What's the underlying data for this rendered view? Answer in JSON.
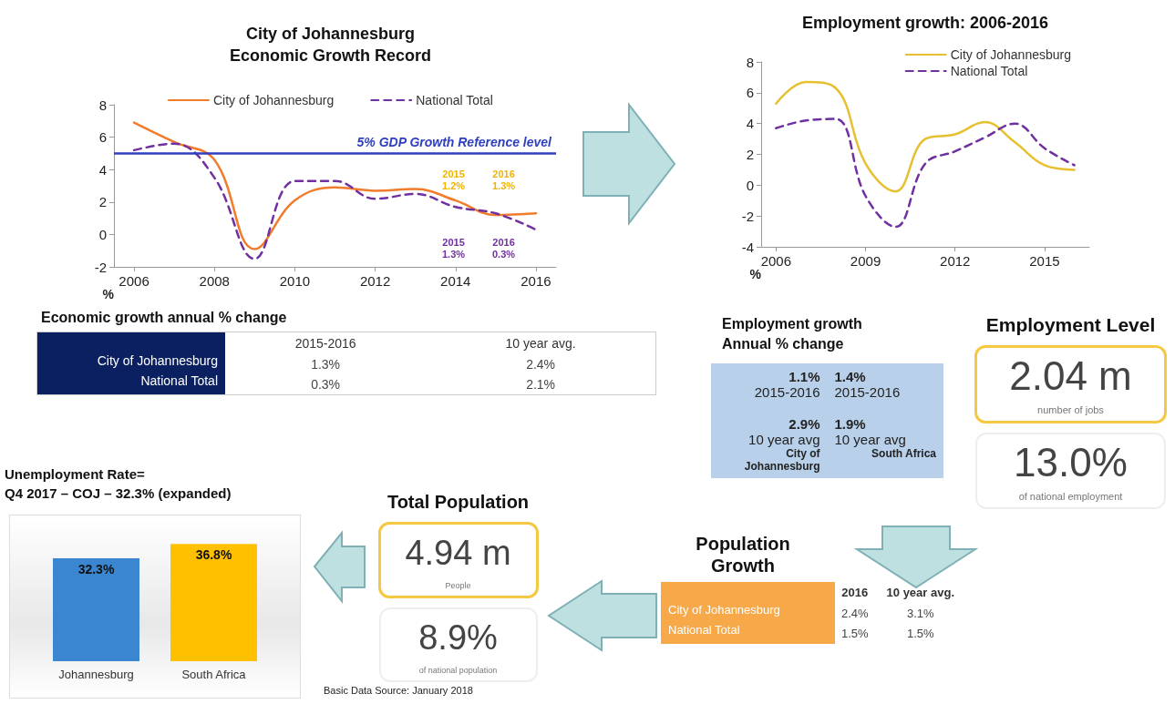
{
  "chart_data": [
    {
      "type": "line",
      "title": "City of Johannesburg\nEconomic Growth Record",
      "ylabel": "%",
      "x": [
        2006,
        2007,
        2008,
        2009,
        2010,
        2011,
        2012,
        2013,
        2014,
        2015,
        2016
      ],
      "xlim": [
        2005.5,
        2016.5
      ],
      "xticks": [
        2006,
        2008,
        2010,
        2012,
        2014,
        2016
      ],
      "ylim": [
        -2,
        8
      ],
      "yticks": [
        -2,
        0,
        2,
        4,
        6,
        8
      ],
      "grid": false,
      "legend": "top",
      "marker": "none",
      "series": [
        {
          "name": "City of Johannesburg",
          "color": "#f07c2c",
          "line_style": "solid",
          "values": [
            6.9,
            5.7,
            4.6,
            -0.9,
            2.1,
            2.9,
            2.7,
            2.8,
            2.1,
            1.2,
            1.3
          ]
        },
        {
          "name": "National Total",
          "color": "#7030a0",
          "line_style": "dashed",
          "values": [
            5.2,
            5.6,
            3.5,
            -1.5,
            3.3,
            3.3,
            2.2,
            2.5,
            1.7,
            1.3,
            0.3
          ]
        }
      ],
      "ref_lines": [
        {
          "axis": "y",
          "value": 5,
          "label": "5% GDP Growth Reference level",
          "color": "#2e3fbf"
        }
      ],
      "annotations": [
        "2015\n1.2%",
        "2016\n1.3%",
        "2015\n1.3%",
        "2016\n0.3%"
      ]
    },
    {
      "type": "line",
      "title": "Employment growth: 2006-2016",
      "ylabel": "%",
      "x": [
        2006,
        2007,
        2008,
        2009,
        2010,
        2011,
        2012,
        2013,
        2014,
        2015,
        2016
      ],
      "xlim": [
        2005.5,
        2016.5
      ],
      "xticks": [
        2006,
        2009,
        2012,
        2015
      ],
      "ylim": [
        -4,
        8
      ],
      "yticks": [
        -4,
        -2,
        0,
        2,
        4,
        6,
        8
      ],
      "grid": false,
      "legend": "top right",
      "marker": "none",
      "series": [
        {
          "name": "City of Johannesburg",
          "color": "#e6c02e",
          "line_style": "solid",
          "values": [
            5.3,
            6.7,
            6.3,
            1.4,
            -0.4,
            3.0,
            3.3,
            4.1,
            2.8,
            1.3,
            1.0
          ]
        },
        {
          "name": "National Total",
          "color": "#7030a0",
          "line_style": "dashed",
          "values": [
            3.7,
            4.2,
            4.3,
            -0.7,
            -2.7,
            1.4,
            2.2,
            3.1,
            4.0,
            2.4,
            1.3
          ]
        }
      ]
    },
    {
      "type": "bar",
      "title": "Unemployment Rate=\nQ4 2017 – COJ – 32.3% (expanded)",
      "categories": [
        "Johannesburg",
        "South Africa"
      ],
      "values": [
        32.3,
        36.8
      ],
      "colors": [
        "#3a86d0",
        "#ffc000"
      ],
      "value_labels": [
        "32.3%",
        "36.8%"
      ]
    },
    {
      "type": "other",
      "title": "Economic growth annual % change",
      "categories": [
        "2015-2016",
        "10 year avg."
      ],
      "y_categories": [
        "City of Johannesburg",
        "National Total"
      ],
      "cell_labels": [
        [
          "1.3%",
          "2.4%"
        ],
        [
          "0.3%",
          "2.1%"
        ]
      ]
    },
    {
      "type": "other",
      "title": "Employment growth\nAnnual % change",
      "categories": [
        "City of\nJohannesburg",
        "South Africa"
      ],
      "y_categories": [
        "2015-2016",
        "10 year avg"
      ],
      "cell_labels": [
        [
          "1.1%",
          "1.4%"
        ],
        [
          "2.9%",
          "1.9%"
        ]
      ]
    },
    {
      "type": "other",
      "title": "Employment Level",
      "annotations": [
        "2.04 m",
        "number of jobs",
        "13.0%",
        "of national employment"
      ]
    },
    {
      "type": "other",
      "title": "Total Population",
      "annotations": [
        "4.94 m",
        "People",
        "8.9%",
        "of national population"
      ]
    },
    {
      "type": "other",
      "title": "Population\nGrowth",
      "categories": [
        "2016",
        "10 year avg."
      ],
      "y_categories": [
        "City of Johannesburg",
        "National Total"
      ],
      "cell_labels": [
        [
          "2.4%",
          "3.1%"
        ],
        [
          "1.5%",
          "1.5%"
        ]
      ]
    },
    {
      "type": "other",
      "annotations": [
        "Basic Data Source: January 2018"
      ]
    }
  ]
}
